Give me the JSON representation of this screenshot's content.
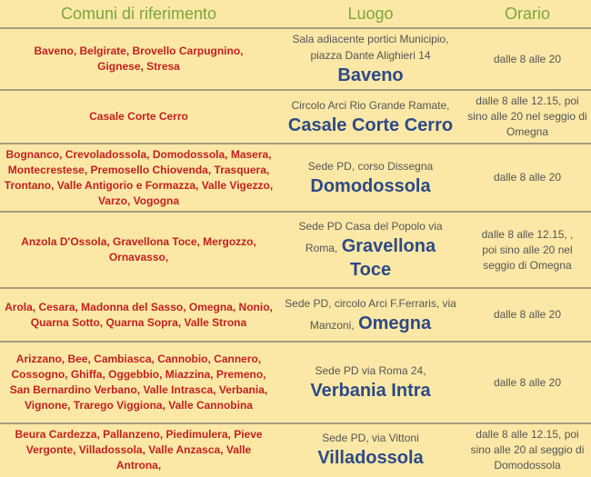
{
  "headers": {
    "comuni": "Comuni di riferimento",
    "luogo": "Luogo",
    "orario": "Orario"
  },
  "rows": [
    {
      "comuni": "Baveno, Belgirate, Brovello Carpugnino, Gignese, Stresa",
      "address": "Sala adiacente portici Municipio, piazza Dante Alighieri 14",
      "city": "Baveno",
      "orario": "dalle 8 alle 20"
    },
    {
      "comuni": "Casale Corte Cerro",
      "address": "Circolo Arci Rio Grande Ramate,",
      "city": "Casale Corte Cerro",
      "orario": "dalle 8 alle 12.15, poi sino alle 20 nel seggio di Omegna"
    },
    {
      "comuni": "Bognanco, Crevoladossola, Domodossola, Masera,  Montecrestese,  Premosello Chiovenda, Trasquera, Trontano, Valle Antigorio e Formazza, Valle Vigezzo, Varzo, Vogogna",
      "address": "Sede PD, corso Dissegna",
      "city": "Domodossola",
      "orario": "dalle 8 alle 20"
    },
    {
      "comuni": "Anzola D'Ossola, Gravellona Toce,  Mergozzo, Ornavasso,",
      "address": "Sede PD Casa del Popolo via Roma,",
      "city": "Gravellona Toce",
      "orario": "dalle 8 alle 12.15, , poi sino alle 20 nel seggio di Omegna"
    },
    {
      "comuni": "Arola, Cesara, Madonna del Sasso, Omegna, Nonio, Quarna Sotto, Quarna Sopra, Valle Strona",
      "address": "Sede PD, circolo Arci F.Ferraris, via Manzoni,",
      "city": "Omegna",
      "orario": "dalle 8 alle 20"
    },
    {
      "comuni": "Arizzano, Bee, Cambiasca, Cannobio, Cannero, Cossogno, Ghiffa, Oggebbio, Miazzina, Premeno, San Bernardino Verbano, Valle Intrasca, Verbania, Vignone,  Trarego Viggiona, Valle Cannobina",
      "address": "Sede PD via Roma 24,",
      "city": "Verbania Intra",
      "orario": "dalle 8 alle 20"
    },
    {
      "comuni": "Beura Cardezza, Pallanzeno, Piedimulera, Pieve Vergonte, Villadossola, Valle Anzasca,  Valle Antrona,",
      "address": "Sede PD, via Vittoni",
      "city": "Villadossola",
      "orario": "dalle 8 alle 12.15, poi sino alle 20 al seggio di Domodossola"
    }
  ]
}
